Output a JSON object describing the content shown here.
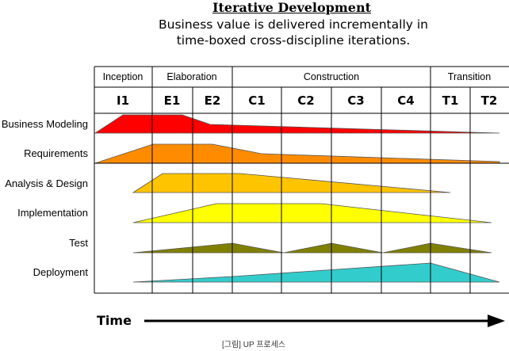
{
  "title": "Iterative Development",
  "subtitle": [
    "Business value is delivered incrementally in",
    "time-boxed cross-discipline iterations."
  ],
  "phases": [
    "Inception",
    "Elaboration",
    "Construction",
    "Transition"
  ],
  "iterations": [
    "I1",
    "E1",
    "E2",
    "C1",
    "C2",
    "C3",
    "C4",
    "T1",
    "T2"
  ],
  "disciplines": [
    {
      "label": "Business Modeling",
      "color": "#ff0000"
    },
    {
      "label": "Requirements",
      "color": "#ff8c00"
    },
    {
      "label": "Analysis & Design",
      "color": "#ffc400"
    },
    {
      "label": "Implementation",
      "color": "#ffff00"
    },
    {
      "label": "Test",
      "color": "#808000"
    },
    {
      "label": "Deployment",
      "color": "#33cccc"
    }
  ],
  "time_label": "Time",
  "caption": "[그림] UP 프로세스"
}
